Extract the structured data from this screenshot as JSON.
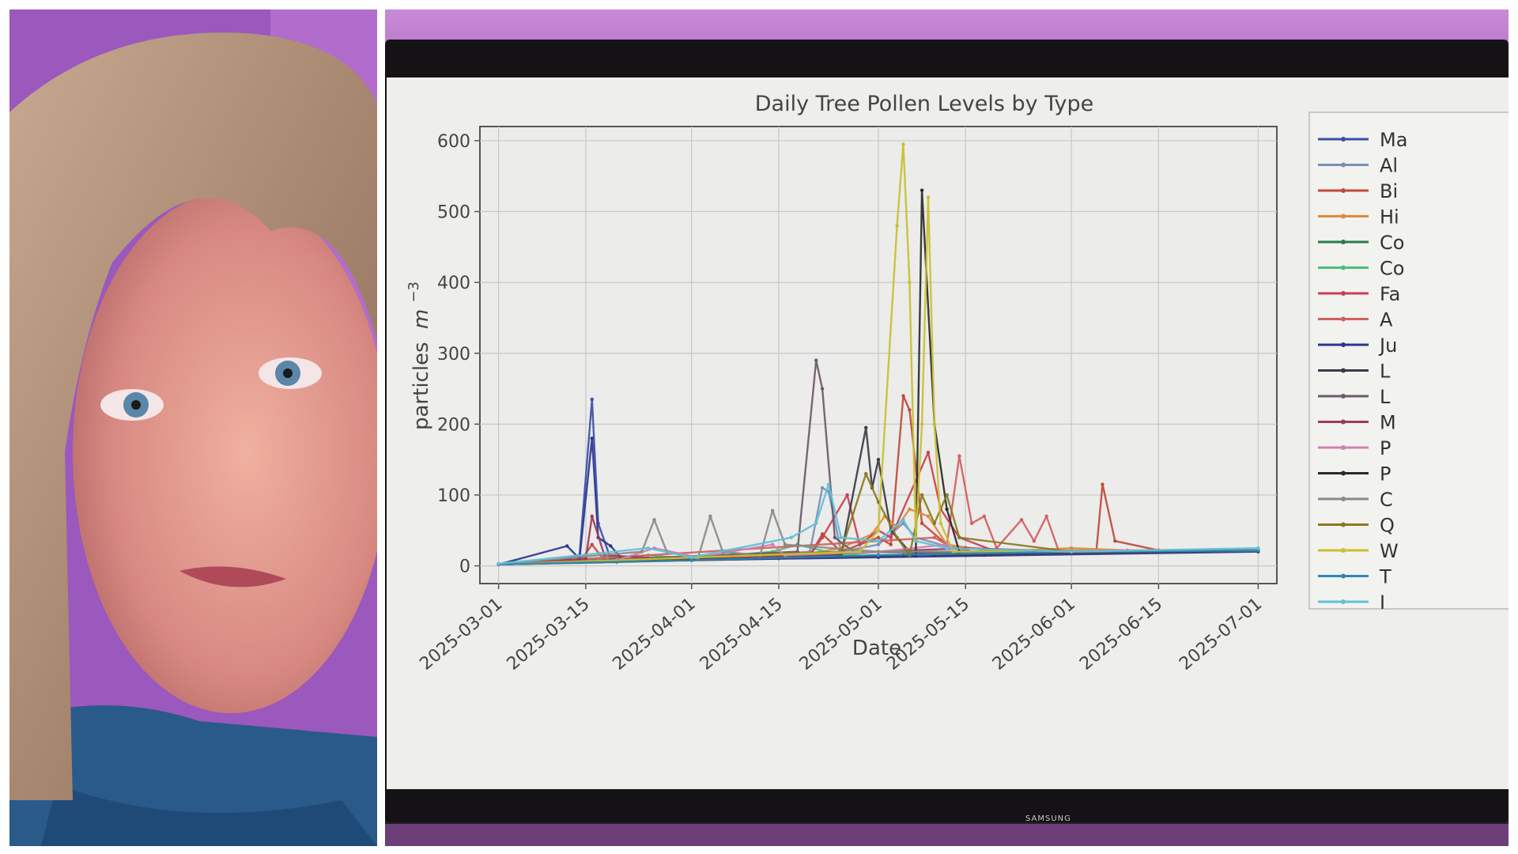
{
  "chart_data": {
    "type": "line",
    "title": "Daily Tree Pollen Levels by Type",
    "xlabel": "Date",
    "ylabel": "particles m⁻³",
    "ylabel_main": "particles",
    "ylabel_unit": "m",
    "ylabel_exp": "−3",
    "ylim": [
      -25,
      620
    ],
    "xlim": [
      "2025-02-26",
      "2025-07-04"
    ],
    "yticks": [
      0,
      100,
      200,
      300,
      400,
      500,
      600
    ],
    "xticks": [
      "2025-03-01",
      "2025-03-15",
      "2025-04-01",
      "2025-04-15",
      "2025-05-01",
      "2025-05-15",
      "2025-06-01",
      "2025-06-15",
      "2025-07-01"
    ],
    "grid": true,
    "legend": "right",
    "series": [
      {
        "name": "Ma",
        "color": "#3a4fa8",
        "points": [
          [
            "2025-03-01",
            2
          ],
          [
            "2025-03-10",
            5
          ],
          [
            "2025-03-14",
            15
          ],
          [
            "2025-03-16",
            235
          ],
          [
            "2025-03-17",
            60
          ],
          [
            "2025-03-19",
            10
          ],
          [
            "2025-04-01",
            8
          ],
          [
            "2025-05-01",
            15
          ],
          [
            "2025-05-15",
            15
          ],
          [
            "2025-06-01",
            20
          ],
          [
            "2025-07-01",
            22
          ]
        ]
      },
      {
        "name": "Al",
        "color": "#7a8fb8",
        "points": [
          [
            "2025-03-01",
            2
          ],
          [
            "2025-03-20",
            5
          ],
          [
            "2025-03-27",
            12
          ],
          [
            "2025-04-01",
            8
          ],
          [
            "2025-04-20",
            20
          ],
          [
            "2025-04-22",
            110
          ],
          [
            "2025-04-23",
            105
          ],
          [
            "2025-04-25",
            20
          ],
          [
            "2025-05-01",
            30
          ],
          [
            "2025-05-05",
            60
          ],
          [
            "2025-05-07",
            40
          ],
          [
            "2025-05-15",
            20
          ],
          [
            "2025-06-01",
            20
          ],
          [
            "2025-07-01",
            22
          ]
        ]
      },
      {
        "name": "Bi",
        "color": "#c04a3c",
        "points": [
          [
            "2025-03-01",
            2
          ],
          [
            "2025-03-14",
            5
          ],
          [
            "2025-03-16",
            30
          ],
          [
            "2025-03-18",
            8
          ],
          [
            "2025-04-20",
            15
          ],
          [
            "2025-04-22",
            45
          ],
          [
            "2025-04-25",
            20
          ],
          [
            "2025-04-28",
            30
          ],
          [
            "2025-05-01",
            40
          ],
          [
            "2025-05-03",
            30
          ],
          [
            "2025-05-05",
            240
          ],
          [
            "2025-05-06",
            220
          ],
          [
            "2025-05-08",
            60
          ],
          [
            "2025-05-12",
            30
          ],
          [
            "2025-05-18",
            15
          ],
          [
            "2025-06-05",
            20
          ],
          [
            "2025-06-06",
            115
          ],
          [
            "2025-06-08",
            35
          ],
          [
            "2025-06-15",
            22
          ],
          [
            "2025-07-01",
            22
          ]
        ]
      },
      {
        "name": "Hi",
        "color": "#e08a3a",
        "points": [
          [
            "2025-03-01",
            2
          ],
          [
            "2025-04-15",
            10
          ],
          [
            "2025-04-25",
            25
          ],
          [
            "2025-04-30",
            45
          ],
          [
            "2025-05-02",
            70
          ],
          [
            "2025-05-04",
            55
          ],
          [
            "2025-05-06",
            80
          ],
          [
            "2025-05-09",
            70
          ],
          [
            "2025-05-12",
            30
          ],
          [
            "2025-05-20",
            20
          ],
          [
            "2025-06-01",
            25
          ],
          [
            "2025-06-10",
            22
          ],
          [
            "2025-07-01",
            22
          ]
        ]
      },
      {
        "name": "Co",
        "color": "#2a7a4a",
        "points": [
          [
            "2025-03-01",
            2
          ],
          [
            "2025-04-01",
            8
          ],
          [
            "2025-04-20",
            12
          ],
          [
            "2025-05-01",
            15
          ],
          [
            "2025-05-15",
            18
          ],
          [
            "2025-06-01",
            20
          ],
          [
            "2025-07-01",
            22
          ]
        ]
      },
      {
        "name": "Co",
        "color": "#4ac07a",
        "points": [
          [
            "2025-03-01",
            3
          ],
          [
            "2025-03-25",
            15
          ],
          [
            "2025-04-01",
            10
          ],
          [
            "2025-04-14",
            20
          ],
          [
            "2025-04-18",
            30
          ],
          [
            "2025-04-25",
            15
          ],
          [
            "2025-05-01",
            20
          ],
          [
            "2025-05-15",
            18
          ],
          [
            "2025-06-01",
            20
          ],
          [
            "2025-07-01",
            22
          ]
        ]
      },
      {
        "name": "Fa",
        "color": "#c84055",
        "points": [
          [
            "2025-03-01",
            2
          ],
          [
            "2025-04-20",
            15
          ],
          [
            "2025-04-22",
            40
          ],
          [
            "2025-04-26",
            100
          ],
          [
            "2025-04-28",
            30
          ],
          [
            "2025-05-01",
            50
          ],
          [
            "2025-05-03",
            40
          ],
          [
            "2025-05-09",
            160
          ],
          [
            "2025-05-11",
            80
          ],
          [
            "2025-05-14",
            40
          ],
          [
            "2025-05-20",
            20
          ],
          [
            "2025-07-01",
            22
          ]
        ]
      },
      {
        "name": "A",
        "color": "#d06060",
        "points": [
          [
            "2025-03-01",
            2
          ],
          [
            "2025-05-10",
            40
          ],
          [
            "2025-05-12",
            30
          ],
          [
            "2025-05-14",
            155
          ],
          [
            "2025-05-16",
            60
          ],
          [
            "2025-05-18",
            70
          ],
          [
            "2025-05-20",
            25
          ],
          [
            "2025-05-24",
            65
          ],
          [
            "2025-05-26",
            35
          ],
          [
            "2025-05-28",
            70
          ],
          [
            "2025-05-30",
            20
          ],
          [
            "2025-06-15",
            22
          ],
          [
            "2025-07-01",
            22
          ]
        ]
      },
      {
        "name": "Ju",
        "color": "#2e3590",
        "points": [
          [
            "2025-03-01",
            2
          ],
          [
            "2025-03-12",
            28
          ],
          [
            "2025-03-14",
            10
          ],
          [
            "2025-03-16",
            180
          ],
          [
            "2025-03-17",
            40
          ],
          [
            "2025-03-19",
            28
          ],
          [
            "2025-03-21",
            8
          ],
          [
            "2025-04-01",
            8
          ],
          [
            "2025-05-01",
            12
          ],
          [
            "2025-07-01",
            20
          ]
        ]
      },
      {
        "name": "L",
        "color": "#3a3a4a",
        "points": [
          [
            "2025-03-01",
            2
          ],
          [
            "2025-04-25",
            15
          ],
          [
            "2025-04-29",
            195
          ],
          [
            "2025-04-30",
            110
          ],
          [
            "2025-05-01",
            150
          ],
          [
            "2025-05-03",
            50
          ],
          [
            "2025-05-06",
            20
          ],
          [
            "2025-05-10",
            15
          ],
          [
            "2025-07-01",
            22
          ]
        ]
      },
      {
        "name": "L",
        "color": "#6a5a6a",
        "points": [
          [
            "2025-03-01",
            2
          ],
          [
            "2025-04-18",
            20
          ],
          [
            "2025-04-21",
            290
          ],
          [
            "2025-04-22",
            250
          ],
          [
            "2025-04-24",
            40
          ],
          [
            "2025-04-27",
            20
          ],
          [
            "2025-05-15",
            18
          ],
          [
            "2025-07-01",
            22
          ]
        ]
      },
      {
        "name": "M",
        "color": "#a03a5a",
        "points": [
          [
            "2025-03-01",
            2
          ],
          [
            "2025-03-15",
            10
          ],
          [
            "2025-03-16",
            70
          ],
          [
            "2025-03-18",
            15
          ],
          [
            "2025-04-01",
            8
          ],
          [
            "2025-05-01",
            20
          ],
          [
            "2025-05-15",
            25
          ],
          [
            "2025-06-01",
            20
          ],
          [
            "2025-07-01",
            22
          ]
        ]
      },
      {
        "name": "P",
        "color": "#d080b0",
        "points": [
          [
            "2025-03-01",
            3
          ],
          [
            "2025-03-20",
            8
          ],
          [
            "2025-03-26",
            25
          ],
          [
            "2025-04-02",
            12
          ],
          [
            "2025-04-14",
            30
          ],
          [
            "2025-04-16",
            15
          ],
          [
            "2025-05-01",
            20
          ],
          [
            "2025-05-12",
            30
          ],
          [
            "2025-05-15",
            20
          ],
          [
            "2025-06-01",
            22
          ],
          [
            "2025-07-01",
            22
          ]
        ]
      },
      {
        "name": "P",
        "color": "#2a2a2a",
        "points": [
          [
            "2025-03-01",
            2
          ],
          [
            "2025-05-05",
            15
          ],
          [
            "2025-05-07",
            15
          ],
          [
            "2025-05-08",
            530
          ],
          [
            "2025-05-10",
            200
          ],
          [
            "2025-05-12",
            80
          ],
          [
            "2025-05-14",
            20
          ],
          [
            "2025-07-01",
            22
          ]
        ]
      },
      {
        "name": "C",
        "color": "#8a8a8a",
        "points": [
          [
            "2025-03-01",
            3
          ],
          [
            "2025-03-24",
            20
          ],
          [
            "2025-03-26",
            65
          ],
          [
            "2025-03-28",
            20
          ],
          [
            "2025-04-02",
            10
          ],
          [
            "2025-04-04",
            70
          ],
          [
            "2025-04-06",
            20
          ],
          [
            "2025-04-12",
            15
          ],
          [
            "2025-04-14",
            78
          ],
          [
            "2025-04-16",
            30
          ],
          [
            "2025-05-01",
            20
          ],
          [
            "2025-07-01",
            22
          ]
        ]
      },
      {
        "name": "Q",
        "color": "#8a7a20",
        "points": [
          [
            "2025-03-01",
            2
          ],
          [
            "2025-04-25",
            20
          ],
          [
            "2025-04-29",
            130
          ],
          [
            "2025-05-01",
            90
          ],
          [
            "2025-05-04",
            40
          ],
          [
            "2025-05-06",
            15
          ],
          [
            "2025-05-08",
            100
          ],
          [
            "2025-05-10",
            60
          ],
          [
            "2025-05-12",
            100
          ],
          [
            "2025-05-14",
            40
          ],
          [
            "2025-06-01",
            20
          ],
          [
            "2025-07-01",
            22
          ]
        ]
      },
      {
        "name": "W",
        "color": "#c8c030",
        "points": [
          [
            "2025-03-01",
            2
          ],
          [
            "2025-04-28",
            20
          ],
          [
            "2025-05-01",
            50
          ],
          [
            "2025-05-04",
            480
          ],
          [
            "2025-05-05",
            595
          ],
          [
            "2025-05-06",
            400
          ],
          [
            "2025-05-07",
            40
          ],
          [
            "2025-05-08",
            200
          ],
          [
            "2025-05-09",
            520
          ],
          [
            "2025-05-10",
            200
          ],
          [
            "2025-05-11",
            60
          ],
          [
            "2025-05-13",
            20
          ],
          [
            "2025-07-01",
            22
          ]
        ]
      },
      {
        "name": "T",
        "color": "#2a88b8",
        "points": [
          [
            "2025-03-01",
            2
          ],
          [
            "2025-04-01",
            8
          ],
          [
            "2025-05-01",
            15
          ],
          [
            "2025-06-01",
            20
          ],
          [
            "2025-07-01",
            22
          ]
        ]
      },
      {
        "name": "I",
        "color": "#60c0d8",
        "points": [
          [
            "2025-03-01",
            3
          ],
          [
            "2025-03-25",
            25
          ],
          [
            "2025-04-01",
            12
          ],
          [
            "2025-04-17",
            40
          ],
          [
            "2025-04-21",
            60
          ],
          [
            "2025-04-23",
            115
          ],
          [
            "2025-04-25",
            40
          ],
          [
            "2025-05-01",
            35
          ],
          [
            "2025-05-05",
            65
          ],
          [
            "2025-05-07",
            35
          ],
          [
            "2025-05-12",
            25
          ],
          [
            "2025-06-01",
            20
          ],
          [
            "2025-07-01",
            25
          ]
        ]
      }
    ]
  },
  "tv_brand": "SAMSUNG"
}
